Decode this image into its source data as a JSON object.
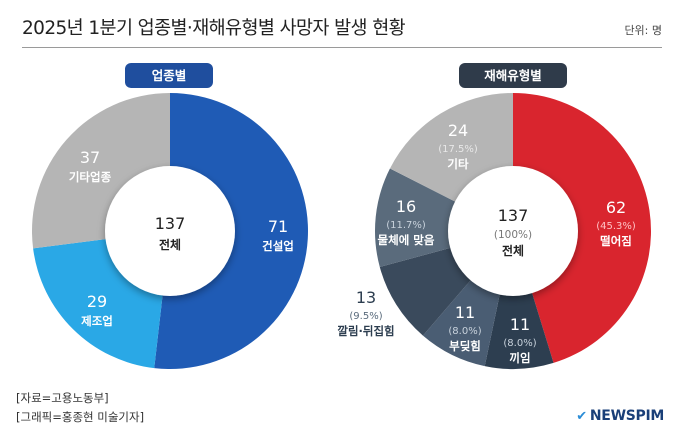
{
  "header": {
    "title": "2025년 1분기 업종별·재해유형별 사망자 발생 현황",
    "unit": "단위: 명"
  },
  "chart_data": [
    {
      "type": "pie",
      "title": "업종별",
      "total": {
        "value": "137",
        "label": "전체"
      },
      "slices": [
        {
          "label": "건설업",
          "value": 71,
          "color": "#1f5bb5"
        },
        {
          "label": "제조업",
          "value": 29,
          "color": "#2aa8e6"
        },
        {
          "label": "기타업종",
          "value": 37,
          "color": "#b5b5b5"
        }
      ]
    },
    {
      "type": "pie",
      "title": "재해유형별",
      "total": {
        "value": "137",
        "pct": "(100%)",
        "label": "전체"
      },
      "slices": [
        {
          "label": "떨어짐",
          "value": 62,
          "pct": "(45.3%)",
          "color": "#d9252e"
        },
        {
          "label": "끼임",
          "value": 11,
          "pct": "(8.0%)",
          "color": "#2d3e50"
        },
        {
          "label": "부딪힘",
          "value": 11,
          "pct": "(8.0%)",
          "color": "#4a5d73"
        },
        {
          "label": "깔림·뒤집힘",
          "value": 13,
          "pct": "(9.5%)",
          "color": "#3a4a5c"
        },
        {
          "label": "물체에 맞음",
          "value": 16,
          "pct": "(11.7%)",
          "color": "#5a6b7c"
        },
        {
          "label": "기타",
          "value": 24,
          "pct": "(17.5%)",
          "color": "#b5b5b5"
        }
      ]
    }
  ],
  "footer": {
    "source": "[자료=고용노동부]",
    "graphic": "[그래픽=홍종현 미술기자]",
    "brand": "NEWSPIM",
    "brand_icon": "check-mark-icon"
  }
}
